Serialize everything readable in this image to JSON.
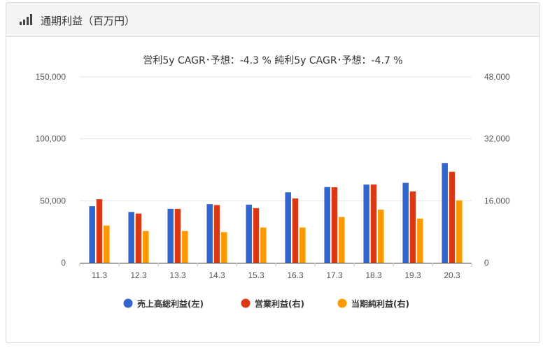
{
  "header": {
    "title": "通期利益（百万円）",
    "icon": "bar-signal-icon"
  },
  "chart_data": {
    "type": "bar",
    "subtitle": "営利5y CAGR･予想：-4.3 %   純利5y CAGR･予想：-4.7 %",
    "categories": [
      "11.3",
      "12.3",
      "13.3",
      "14.3",
      "15.3",
      "16.3",
      "17.3",
      "18.3",
      "19.3",
      "20.3"
    ],
    "left_axis": {
      "ticks": [
        "0",
        "50,000",
        "100,000",
        "150,000"
      ],
      "ylim": [
        0,
        150000
      ]
    },
    "right_axis": {
      "ticks": [
        "0",
        "16,000",
        "32,000",
        "48,000"
      ],
      "ylim": [
        0,
        48000
      ]
    },
    "grid": true,
    "legend_position": "bottom",
    "series": [
      {
        "name": "売上高総利益(左)",
        "axis": "left",
        "color": "#3366cc",
        "values": [
          45600,
          41000,
          43500,
          47300,
          46900,
          56800,
          61100,
          63100,
          64500,
          80500
        ]
      },
      {
        "name": "営業利益(右)",
        "axis": "right",
        "color": "#dc3912",
        "values": [
          16400,
          12700,
          13900,
          14900,
          14100,
          16600,
          19500,
          20200,
          18400,
          23500
        ]
      },
      {
        "name": "当期純利益(右)",
        "axis": "right",
        "color": "#ff9900",
        "values": [
          9600,
          8200,
          8200,
          7900,
          9100,
          9100,
          11800,
          13700,
          11400,
          16100
        ]
      }
    ]
  }
}
